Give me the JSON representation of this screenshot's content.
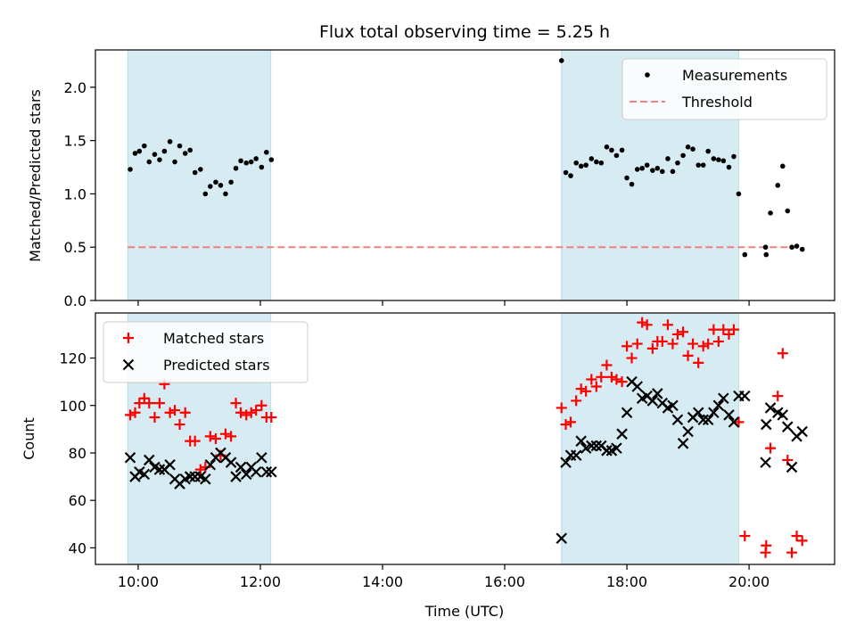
{
  "chart_data": {
    "title": "Flux total observing time = 5.25 h",
    "xlabel": "Time (UTC)",
    "x_unit": "hours UTC",
    "xlim": [
      9.3,
      21.4
    ],
    "x_ticks": [
      10,
      12,
      14,
      16,
      18,
      20
    ],
    "x_tick_labels": [
      "10:00",
      "12:00",
      "14:00",
      "16:00",
      "18:00",
      "20:00"
    ],
    "shaded_intervals": [
      [
        9.83,
        12.17
      ],
      [
        16.93,
        19.83
      ]
    ],
    "shade_color": "#add8e6",
    "panels": [
      {
        "type": "scatter",
        "ylabel": "Matched/Predicted stars",
        "ylim": [
          0,
          2.35
        ],
        "y_ticks": [
          0.0,
          0.5,
          1.0,
          1.5,
          2.0
        ],
        "y_tick_labels": [
          "0.0",
          "0.5",
          "1.0",
          "1.5",
          "2.0"
        ],
        "legend": {
          "position": "upper right",
          "entries": [
            "Measurements",
            "Threshold"
          ]
        },
        "threshold": {
          "value": 0.5,
          "x_range": [
            9.83,
            20.83
          ],
          "color": "#f08080"
        },
        "series": [
          {
            "name": "Measurements",
            "marker": "dot",
            "color": "#000000",
            "x": [
              9.87,
              9.95,
              10.02,
              10.1,
              10.18,
              10.27,
              10.35,
              10.43,
              10.52,
              10.6,
              10.68,
              10.77,
              10.85,
              10.93,
              11.02,
              11.1,
              11.18,
              11.27,
              11.35,
              11.43,
              11.52,
              11.6,
              11.68,
              11.77,
              11.85,
              11.93,
              12.02,
              12.1,
              12.18,
              16.93,
              17.0,
              17.08,
              17.17,
              17.25,
              17.33,
              17.42,
              17.5,
              17.58,
              17.67,
              17.75,
              17.83,
              17.92,
              18.0,
              18.08,
              18.17,
              18.25,
              18.33,
              18.42,
              18.5,
              18.58,
              18.67,
              18.75,
              18.83,
              18.92,
              19.0,
              19.08,
              19.17,
              19.25,
              19.33,
              19.42,
              19.5,
              19.58,
              19.67,
              19.75,
              19.83,
              19.93,
              20.27,
              20.28,
              20.35,
              20.47,
              20.55,
              20.63,
              20.7,
              20.78,
              20.87
            ],
            "y": [
              1.23,
              1.38,
              1.4,
              1.45,
              1.3,
              1.37,
              1.32,
              1.4,
              1.49,
              1.3,
              1.45,
              1.38,
              1.41,
              1.2,
              1.23,
              1.0,
              1.07,
              1.11,
              1.08,
              1.0,
              1.11,
              1.24,
              1.31,
              1.29,
              1.3,
              1.33,
              1.25,
              1.39,
              1.32,
              2.25,
              1.2,
              1.17,
              1.29,
              1.26,
              1.27,
              1.33,
              1.3,
              1.29,
              1.44,
              1.41,
              1.36,
              1.41,
              1.15,
              1.09,
              1.23,
              1.24,
              1.27,
              1.22,
              1.24,
              1.21,
              1.33,
              1.21,
              1.29,
              1.36,
              1.44,
              1.42,
              1.27,
              1.27,
              1.4,
              1.33,
              1.32,
              1.31,
              1.25,
              1.35,
              1.0,
              0.43,
              0.5,
              0.43,
              0.82,
              1.08,
              1.26,
              0.84,
              0.5,
              0.51,
              0.48
            ]
          }
        ]
      },
      {
        "type": "scatter",
        "ylabel": "Count",
        "ylim": [
          33,
          139
        ],
        "y_ticks": [
          40,
          60,
          80,
          100,
          120
        ],
        "y_tick_labels": [
          "40",
          "60",
          "80",
          "100",
          "120"
        ],
        "legend": {
          "position": "upper left",
          "entries": [
            "Matched stars",
            "Predicted stars"
          ]
        },
        "series": [
          {
            "name": "Matched stars",
            "marker": "plus",
            "color": "#ff0000",
            "x": [
              9.87,
              9.95,
              10.02,
              10.1,
              10.18,
              10.27,
              10.35,
              10.43,
              10.52,
              10.6,
              10.68,
              10.77,
              10.85,
              10.93,
              11.02,
              11.1,
              11.18,
              11.27,
              11.35,
              11.43,
              11.52,
              11.6,
              11.68,
              11.77,
              11.85,
              11.93,
              12.02,
              12.1,
              12.18,
              16.93,
              17.0,
              17.08,
              17.17,
              17.25,
              17.33,
              17.42,
              17.5,
              17.58,
              17.67,
              17.75,
              17.83,
              17.92,
              18.0,
              18.08,
              18.17,
              18.25,
              18.33,
              18.42,
              18.5,
              18.58,
              18.67,
              18.75,
              18.83,
              18.92,
              19.0,
              19.08,
              19.17,
              19.25,
              19.33,
              19.42,
              19.5,
              19.58,
              19.67,
              19.75,
              19.83,
              19.93,
              20.27,
              20.28,
              20.35,
              20.47,
              20.55,
              20.63,
              20.7,
              20.78,
              20.87
            ],
            "y": [
              96,
              97,
              101,
              103,
              101,
              95,
              101,
              109,
              97,
              98,
              92,
              97,
              85,
              85,
              73,
              74,
              87,
              86,
              79,
              88,
              87,
              101,
              97,
              96,
              97,
              98,
              100,
              95,
              95,
              99,
              92,
              93,
              102,
              107,
              106,
              111,
              108,
              112,
              117,
              112,
              111,
              110,
              125,
              120,
              126,
              135,
              134,
              124,
              127,
              127,
              134,
              126,
              130,
              131,
              121,
              126,
              118,
              125,
              126,
              132,
              127,
              132,
              130,
              132,
              93,
              45,
              38,
              41,
              82,
              104,
              122,
              77,
              38,
              45,
              43
            ]
          },
          {
            "name": "Predicted stars",
            "marker": "x",
            "color": "#000000",
            "x": [
              9.87,
              9.95,
              10.02,
              10.1,
              10.18,
              10.27,
              10.35,
              10.43,
              10.52,
              10.6,
              10.68,
              10.77,
              10.85,
              10.93,
              11.02,
              11.1,
              11.18,
              11.27,
              11.35,
              11.43,
              11.52,
              11.6,
              11.68,
              11.77,
              11.85,
              11.93,
              12.02,
              12.1,
              12.18,
              16.93,
              17.0,
              17.08,
              17.17,
              17.25,
              17.33,
              17.42,
              17.5,
              17.58,
              17.67,
              17.75,
              17.83,
              17.92,
              18.0,
              18.08,
              18.17,
              18.25,
              18.33,
              18.42,
              18.5,
              18.58,
              18.67,
              18.75,
              18.83,
              18.92,
              19.0,
              19.08,
              19.17,
              19.25,
              19.33,
              19.42,
              19.5,
              19.58,
              19.67,
              19.75,
              19.83,
              19.93,
              20.27,
              20.28,
              20.35,
              20.47,
              20.55,
              20.63,
              20.7,
              20.78,
              20.87
            ],
            "y": [
              78,
              70,
              72,
              71,
              77,
              74,
              73,
              73,
              75,
              69,
              67,
              69,
              70,
              70,
              70,
              69,
              75,
              78,
              80,
              78,
              76,
              70,
              74,
              71,
              74,
              72,
              78,
              72,
              72,
              44,
              76,
              79,
              79,
              85,
              82,
              83,
              83,
              83,
              81,
              81,
              82,
              88,
              97,
              110,
              108,
              103,
              104,
              102,
              105,
              101,
              99,
              100,
              94,
              84,
              89,
              95,
              97,
              94,
              94,
              97,
              100,
              103,
              96,
              93,
              104,
              104,
              76,
              92,
              99,
              97,
              96,
              91,
              74,
              87,
              89
            ]
          }
        ]
      }
    ]
  }
}
